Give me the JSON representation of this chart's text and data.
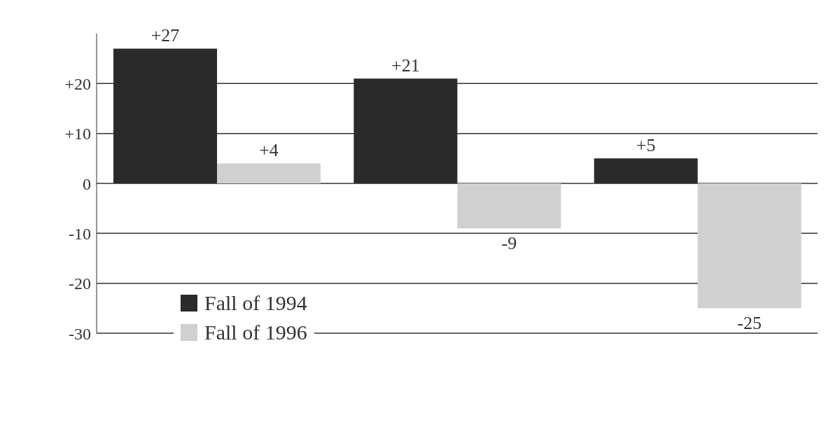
{
  "chart_data": {
    "type": "bar",
    "categories": [
      null,
      null,
      null
    ],
    "series": [
      {
        "name": "Fall of 1994",
        "color": "#2a2a2a",
        "values": [
          27,
          21,
          5
        ],
        "value_labels": [
          "+27",
          "+21",
          "+5"
        ]
      },
      {
        "name": "Fall of 1996",
        "color": "#d0d0d0",
        "values": [
          4,
          -9,
          -25
        ],
        "value_labels": [
          "+4",
          "-9",
          "-25"
        ]
      }
    ],
    "ylim": [
      -30,
      30
    ],
    "yticks": [
      {
        "value": -30,
        "label": "-30"
      },
      {
        "value": -20,
        "label": "-20"
      },
      {
        "value": -10,
        "label": "-10"
      },
      0,
      {
        "value": 10,
        "label": "+10"
      },
      {
        "value": 20,
        "label": "+20"
      }
    ],
    "grid": "y",
    "legend": "bottom left"
  }
}
